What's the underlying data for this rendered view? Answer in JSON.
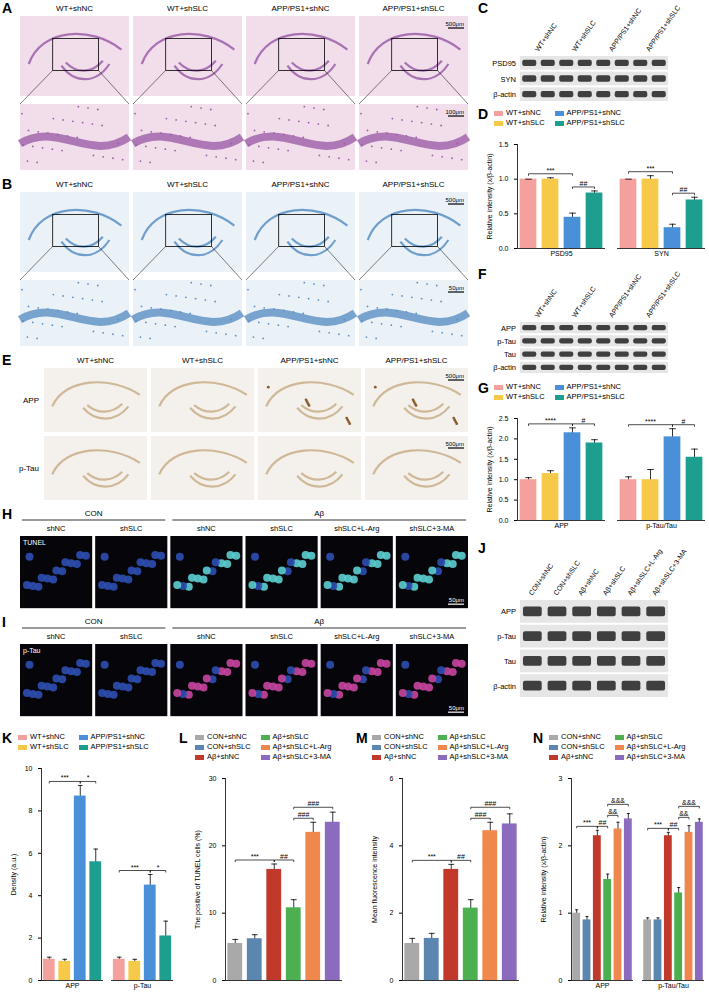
{
  "panels": [
    {
      "letter": "A",
      "kind": "stain",
      "columns": [
        "WT+shNC",
        "WT+shSLC",
        "APP/PS1+shNC",
        "APP/PS1+shSLC"
      ],
      "scale_bars": [
        "500μm",
        "100μm"
      ]
    },
    {
      "letter": "B",
      "kind": "stain",
      "columns": [
        "WT+shNC",
        "WT+shSLC",
        "APP/PS1+shNC",
        "APP/PS1+shSLC"
      ],
      "scale_bars": [
        "500μm",
        "50μm"
      ]
    },
    {
      "letter": "C",
      "kind": "blot",
      "columns": [
        "WT+shNC",
        "WT+shSLC",
        "APP/PS1+shNC",
        "APP/PS1+shSLC"
      ],
      "rows": [
        "PSD95",
        "SYN",
        "β-actin"
      ]
    },
    {
      "letter": "E",
      "kind": "ihc",
      "columns": [
        "WT+shNC",
        "WT+shSLC",
        "APP/PS1+shNC",
        "APP/PS1+shSLC"
      ],
      "rows": [
        "APP",
        "p-Tau"
      ],
      "scale_bars": [
        "500μm"
      ]
    },
    {
      "letter": "F",
      "kind": "blot",
      "columns": [
        "WT+shNC",
        "WT+shSLC",
        "APP/PS1+shNC",
        "APP/PS1+shSLC"
      ],
      "rows": [
        "APP",
        "p-Tau",
        "Tau",
        "β-actin"
      ]
    },
    {
      "letter": "H",
      "kind": "fluorescence",
      "groups": [
        {
          "name": "CON",
          "columns": [
            "shNC",
            "shSLC"
          ]
        },
        {
          "name": "Aβ",
          "columns": [
            "shNC",
            "shSLC",
            "shSLC+L-Arg",
            "shSLC+3-MA"
          ]
        }
      ],
      "row": "TUNEL",
      "scale_bars": [
        "50μm"
      ]
    },
    {
      "letter": "I",
      "kind": "fluorescence",
      "groups": [
        {
          "name": "CON",
          "columns": [
            "shNC",
            "shSLC"
          ]
        },
        {
          "name": "Aβ",
          "columns": [
            "shNC",
            "shSLC",
            "shSLC+L-Arg",
            "shSLC+3-MA"
          ]
        }
      ],
      "row": "p-Tau",
      "scale_bars": [
        "50μm"
      ]
    },
    {
      "letter": "J",
      "kind": "blot",
      "columns": [
        "CON+shNC",
        "CON+shSLC",
        "Aβ+shNC",
        "Aβ+shSLC",
        "Aβ+shSLC+L-Arg",
        "Aβ+shSLC+3-MA"
      ],
      "rows": [
        "APP",
        "p-Tau",
        "Tau",
        "β-actin"
      ]
    }
  ],
  "chart_data": [
    {
      "letter": "D",
      "type": "bar",
      "ylabel": "Relative intensity (x/β-actin)",
      "legend": "top",
      "categories": [
        "PSD95",
        "SYN"
      ],
      "series": [
        {
          "name": "WT+shNC",
          "color": "#F4A09C",
          "values": [
            1.0,
            1.0
          ],
          "errors": [
            0.0,
            0.0
          ]
        },
        {
          "name": "WT+shSLC",
          "color": "#F7C948",
          "values": [
            1.0,
            1.0
          ],
          "errors": [
            0.02,
            0.05
          ]
        },
        {
          "name": "APP/PS1+shNC",
          "color": "#4A90D9",
          "values": [
            0.45,
            0.3
          ],
          "errors": [
            0.06,
            0.05
          ]
        },
        {
          "name": "APP/PS1+shSLC",
          "color": "#1E9E8E",
          "values": [
            0.8,
            0.7
          ],
          "errors": [
            0.03,
            0.04
          ]
        }
      ],
      "ylim": [
        0,
        1.5
      ],
      "yticks": [
        {
          "value": 0,
          "label": "0.0"
        },
        {
          "value": 0.5,
          "label": "0.5"
        },
        {
          "value": 1,
          "label": "1.0"
        },
        {
          "value": 1.5,
          "label": "1.5"
        }
      ],
      "annotations": [
        {
          "category": "PSD95",
          "from": "WT+shNC",
          "to": "APP/PS1+shNC",
          "text": "***"
        },
        {
          "category": "PSD95",
          "from": "APP/PS1+shNC",
          "to": "APP/PS1+shSLC",
          "text": "##"
        },
        {
          "category": "SYN",
          "from": "WT+shNC",
          "to": "APP/PS1+shNC",
          "text": "***"
        },
        {
          "category": "SYN",
          "from": "APP/PS1+shNC",
          "to": "APP/PS1+shSLC",
          "text": "##"
        }
      ]
    },
    {
      "letter": "G",
      "type": "bar",
      "ylabel": "Relative intensity (x/β-actin)",
      "legend": "top",
      "categories": [
        "APP",
        "p-Tau/Tau"
      ],
      "series": [
        {
          "name": "WT+shNC",
          "color": "#F4A09C",
          "values": [
            1.0,
            1.0
          ],
          "errors": [
            0.05,
            0.07
          ]
        },
        {
          "name": "WT+shSLC",
          "color": "#F7C948",
          "values": [
            1.15,
            1.0
          ],
          "errors": [
            0.07,
            0.25
          ]
        },
        {
          "name": "APP/PS1+shNC",
          "color": "#4A90D9",
          "values": [
            2.15,
            2.05
          ],
          "errors": [
            0.12,
            0.2
          ]
        },
        {
          "name": "APP/PS1+shSLC",
          "color": "#1E9E8E",
          "values": [
            1.9,
            1.55
          ],
          "errors": [
            0.08,
            0.2
          ]
        }
      ],
      "ylim": [
        0,
        2.5
      ],
      "yticks": [
        {
          "value": 0,
          "label": "0.0"
        },
        {
          "value": 0.5,
          "label": "0.5"
        },
        {
          "value": 1,
          "label": "1.0"
        },
        {
          "value": 1.5,
          "label": "1.5"
        },
        {
          "value": 2,
          "label": "2.0"
        },
        {
          "value": 2.5,
          "label": "2.5"
        }
      ],
      "annotations": [
        {
          "category": "APP",
          "from": "WT+shNC",
          "to": "APP/PS1+shNC",
          "text": "****"
        },
        {
          "category": "APP",
          "from": "APP/PS1+shNC",
          "to": "APP/PS1+shSLC",
          "text": "#"
        },
        {
          "category": "p-Tau/Tau",
          "from": "WT+shNC",
          "to": "APP/PS1+shNC",
          "text": "****"
        },
        {
          "category": "p-Tau/Tau",
          "from": "APP/PS1+shNC",
          "to": "APP/PS1+shSLC",
          "text": "#"
        }
      ]
    },
    {
      "letter": "K",
      "type": "bar",
      "ylabel": "Density (a.u.)",
      "legend": "top",
      "categories": [
        "APP",
        "p-Tau"
      ],
      "series": [
        {
          "name": "WT+shNC",
          "color": "#F4A09C",
          "values": [
            1.0,
            1.0
          ],
          "errors": [
            0.1,
            0.1
          ]
        },
        {
          "name": "WT+shSLC",
          "color": "#F7C948",
          "values": [
            0.9,
            0.9
          ],
          "errors": [
            0.1,
            0.1
          ]
        },
        {
          "name": "APP/PS1+shNC",
          "color": "#4A90D9",
          "values": [
            8.7,
            4.5
          ],
          "errors": [
            0.5,
            0.5
          ]
        },
        {
          "name": "APP/PS1+shSLC",
          "color": "#1E9E8E",
          "values": [
            5.6,
            2.1
          ],
          "errors": [
            0.6,
            0.7
          ]
        }
      ],
      "ylim": [
        0,
        10
      ],
      "yticks": [
        0,
        2,
        4,
        6,
        8,
        10
      ],
      "annotations": [
        {
          "category": "APP",
          "from": "WT+shNC",
          "to": "APP/PS1+shNC",
          "text": "***"
        },
        {
          "category": "APP",
          "from": "APP/PS1+shNC",
          "to": "APP/PS1+shSLC",
          "text": "*"
        },
        {
          "category": "p-Tau",
          "from": "WT+shNC",
          "to": "APP/PS1+shNC",
          "text": "***"
        },
        {
          "category": "p-Tau",
          "from": "APP/PS1+shNC",
          "to": "APP/PS1+shSLC",
          "text": "*"
        }
      ]
    },
    {
      "letter": "L",
      "type": "bar",
      "ylabel": "The positive of TUNEL cells (%)",
      "legend": "top",
      "categories": [
        null
      ],
      "series": [
        {
          "name": "CON+shNC",
          "color": "#A9A9A9",
          "values": [
            5.5
          ],
          "errors": [
            0.6
          ]
        },
        {
          "name": "CON+shSLC",
          "color": "#5B86B0",
          "values": [
            6.2
          ],
          "errors": [
            0.6
          ]
        },
        {
          "name": "Aβ+shNC",
          "color": "#C0392B",
          "values": [
            16.5
          ],
          "errors": [
            0.8
          ]
        },
        {
          "name": "Aβ+shSLC",
          "color": "#4CAF50",
          "values": [
            10.8
          ],
          "errors": [
            1.2
          ]
        },
        {
          "name": "Aβ+shSLC+L-Arg",
          "color": "#F0884E",
          "values": [
            22.0
          ],
          "errors": [
            1.5
          ]
        },
        {
          "name": "Aβ+shSLC+3-MA",
          "color": "#8A6BBE",
          "values": [
            23.5
          ],
          "errors": [
            1.5
          ]
        }
      ],
      "ylim": [
        0,
        30
      ],
      "yticks": [
        0,
        10,
        20,
        30
      ],
      "annotations": [
        {
          "category": null,
          "from": "CON+shNC",
          "to": "Aβ+shNC",
          "text": "***"
        },
        {
          "category": null,
          "from": "Aβ+shNC",
          "to": "Aβ+shSLC",
          "text": "##"
        },
        {
          "category": null,
          "from": "Aβ+shSLC",
          "to": "Aβ+shSLC+L-Arg",
          "text": "###"
        },
        {
          "category": null,
          "from": "Aβ+shSLC",
          "to": "Aβ+shSLC+3-MA",
          "text": "###"
        }
      ]
    },
    {
      "letter": "M",
      "type": "bar",
      "ylabel": "Mean fluorescence intensity",
      "legend": "top",
      "categories": [
        null
      ],
      "series": [
        {
          "name": "CON+shNC",
          "color": "#A9A9A9",
          "values": [
            1.1
          ],
          "errors": [
            0.15
          ]
        },
        {
          "name": "CON+shSLC",
          "color": "#5B86B0",
          "values": [
            1.25
          ],
          "errors": [
            0.15
          ]
        },
        {
          "name": "Aβ+shNC",
          "color": "#C0392B",
          "values": [
            3.3
          ],
          "errors": [
            0.15
          ]
        },
        {
          "name": "Aβ+shSLC",
          "color": "#4CAF50",
          "values": [
            2.15
          ],
          "errors": [
            0.25
          ]
        },
        {
          "name": "Aβ+shSLC+L-Arg",
          "color": "#F0884E",
          "values": [
            4.45
          ],
          "errors": [
            0.25
          ]
        },
        {
          "name": "Aβ+shSLC+3-MA",
          "color": "#8A6BBE",
          "values": [
            4.65
          ],
          "errors": [
            0.3
          ]
        }
      ],
      "ylim": [
        0,
        6
      ],
      "yticks": [
        0,
        2,
        4,
        6
      ],
      "annotations": [
        {
          "category": null,
          "from": "CON+shNC",
          "to": "Aβ+shNC",
          "text": "***"
        },
        {
          "category": null,
          "from": "Aβ+shNC",
          "to": "Aβ+shSLC",
          "text": "##"
        },
        {
          "category": null,
          "from": "Aβ+shSLC",
          "to": "Aβ+shSLC+L-Arg",
          "text": "###"
        },
        {
          "category": null,
          "from": "Aβ+shSLC",
          "to": "Aβ+shSLC+3-MA",
          "text": "###"
        }
      ]
    },
    {
      "letter": "N",
      "type": "bar",
      "ylabel": "Relative intensity (x/β-actin)",
      "legend": "top",
      "categories": [
        "APP",
        "p-Tau/Tau"
      ],
      "series": [
        {
          "name": "CON+shNC",
          "color": "#A9A9A9",
          "values": [
            1.0,
            0.9
          ],
          "errors": [
            0.05,
            0.03
          ]
        },
        {
          "name": "CON+shSLC",
          "color": "#5B86B0",
          "values": [
            0.9,
            0.9
          ],
          "errors": [
            0.05,
            0.03
          ]
        },
        {
          "name": "Aβ+shNC",
          "color": "#C0392B",
          "values": [
            2.15,
            2.15
          ],
          "errors": [
            0.08,
            0.05
          ]
        },
        {
          "name": "Aβ+shSLC",
          "color": "#4CAF50",
          "values": [
            1.5,
            1.3
          ],
          "errors": [
            0.08,
            0.08
          ]
        },
        {
          "name": "Aβ+shSLC+L-Arg",
          "color": "#F0884E",
          "values": [
            2.25,
            2.2
          ],
          "errors": [
            0.1,
            0.1
          ]
        },
        {
          "name": "Aβ+shSLC+3-MA",
          "color": "#8A6BBE",
          "values": [
            2.4,
            2.35
          ],
          "errors": [
            0.08,
            0.05
          ]
        }
      ],
      "ylim": [
        0,
        3
      ],
      "yticks": [
        0,
        1,
        2,
        3
      ],
      "annotations": [
        {
          "category": "APP",
          "from": "CON+shNC",
          "to": "Aβ+shNC",
          "text": "***"
        },
        {
          "category": "APP",
          "from": "Aβ+shNC",
          "to": "Aβ+shSLC",
          "text": "##"
        },
        {
          "category": "APP",
          "from": "Aβ+shSLC",
          "to": "Aβ+shSLC+L-Arg",
          "text": "&&"
        },
        {
          "category": "APP",
          "from": "Aβ+shSLC",
          "to": "Aβ+shSLC+3-MA",
          "text": "&&&"
        },
        {
          "category": "p-Tau/Tau",
          "from": "CON+shNC",
          "to": "Aβ+shNC",
          "text": "***"
        },
        {
          "category": "p-Tau/Tau",
          "from": "Aβ+shNC",
          "to": "Aβ+shSLC",
          "text": "##"
        },
        {
          "category": "p-Tau/Tau",
          "from": "Aβ+shSLC",
          "to": "Aβ+shSLC+L-Arg",
          "text": "&&"
        },
        {
          "category": "p-Tau/Tau",
          "from": "Aβ+shSLC",
          "to": "Aβ+shSLC+3-MA",
          "text": "&&&"
        }
      ]
    }
  ]
}
